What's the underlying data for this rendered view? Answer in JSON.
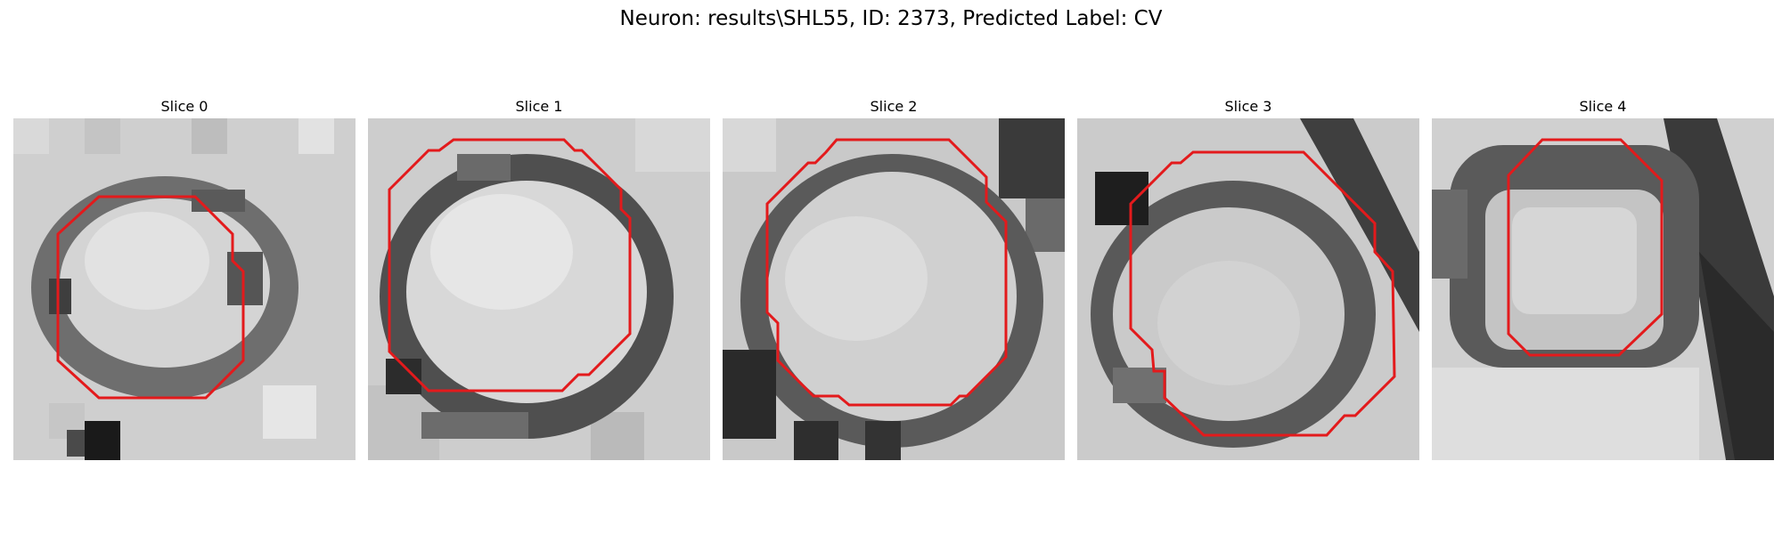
{
  "figure": {
    "title": "Neuron: results\\SHL55, ID: 2373, Predicted Label: CV"
  },
  "slices": [
    {
      "title": "Slice 0"
    },
    {
      "title": "Slice 1"
    },
    {
      "title": "Slice 2"
    },
    {
      "title": "Slice 3"
    },
    {
      "title": "Slice 4"
    }
  ],
  "colors": {
    "outline": "#e31a1c",
    "background": "#ffffff"
  }
}
